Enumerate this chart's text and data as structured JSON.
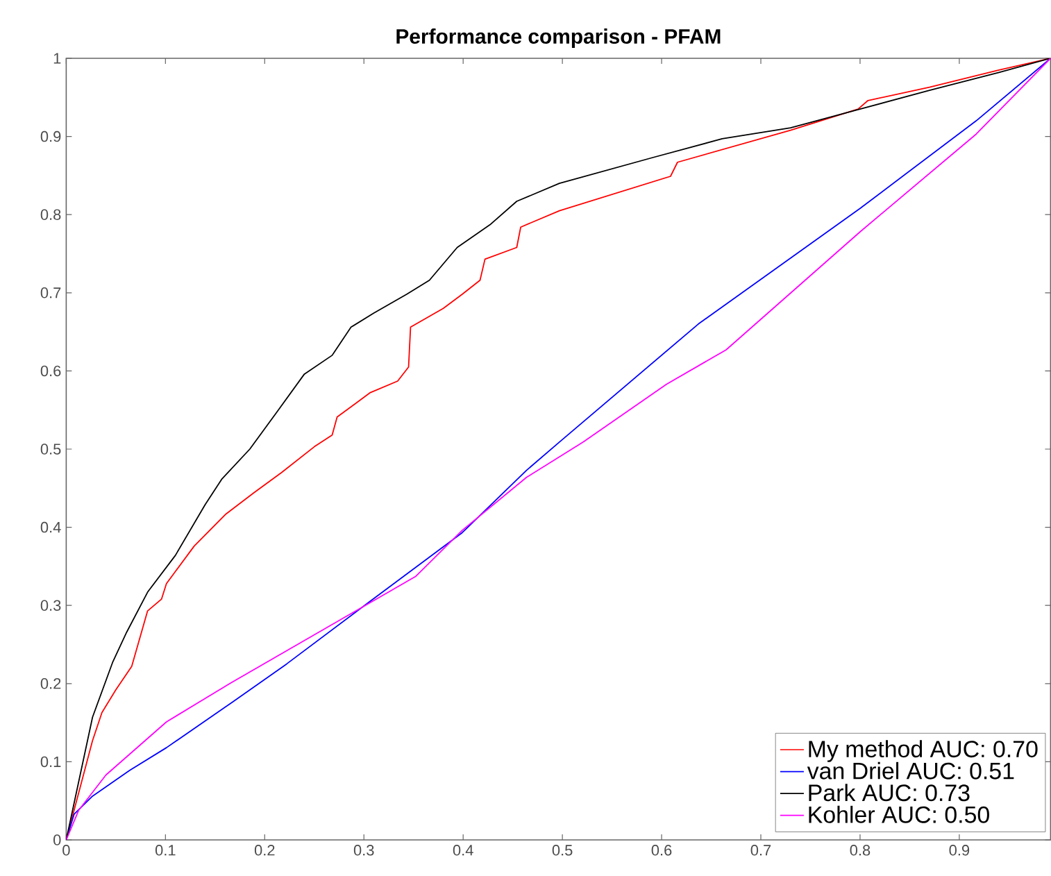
{
  "chart_data": {
    "type": "line",
    "title": "Performance comparison - PFAM",
    "xlim": [
      0,
      0.992
    ],
    "ylim": [
      0,
      1
    ],
    "xticks": [
      0,
      0.1,
      0.2,
      0.3,
      0.4,
      0.5,
      0.6,
      0.7,
      0.8,
      0.9
    ],
    "yticks": [
      0,
      0.1,
      0.2,
      0.3,
      0.4,
      0.5,
      0.6,
      0.7,
      0.8,
      0.9,
      1
    ],
    "legend": "bottom right",
    "grid": false,
    "marker": "none",
    "line_style": "solid",
    "series": [
      {
        "name": "My method AUC: 0.70",
        "color": "#ff0000",
        "x": [
          0,
          0.0265,
          0.036,
          0.05,
          0.066,
          0.082,
          0.096,
          0.101,
          0.129,
          0.161,
          0.189,
          0.217,
          0.25,
          0.268,
          0.273,
          0.306,
          0.334,
          0.345,
          0.347,
          0.38,
          0.399,
          0.417,
          0.422,
          0.454,
          0.458,
          0.497,
          0.609,
          0.616,
          0.73,
          0.798,
          0.808,
          0.87,
          0.94,
          0.992
        ],
        "values": [
          0,
          0.127,
          0.163,
          0.192,
          0.222,
          0.293,
          0.308,
          0.328,
          0.376,
          0.417,
          0.444,
          0.47,
          0.503,
          0.518,
          0.541,
          0.572,
          0.587,
          0.605,
          0.656,
          0.68,
          0.698,
          0.716,
          0.743,
          0.758,
          0.784,
          0.805,
          0.849,
          0.867,
          0.908,
          0.935,
          0.946,
          0.963,
          0.985,
          1
        ]
      },
      {
        "name": "van Driel AUC: 0.51",
        "color": "#0000ff",
        "x": [
          0,
          0.008,
          0.0265,
          0.064,
          0.101,
          0.166,
          0.222,
          0.306,
          0.399,
          0.464,
          0.497,
          0.637,
          0.8,
          0.917,
          0.992
        ],
        "values": [
          0,
          0.033,
          0.056,
          0.089,
          0.118,
          0.175,
          0.225,
          0.305,
          0.393,
          0.473,
          0.509,
          0.66,
          0.808,
          0.92,
          1
        ]
      },
      {
        "name": "Park AUC: 0.73",
        "color": "#000000",
        "x": [
          0,
          0.0265,
          0.047,
          0.061,
          0.082,
          0.11,
          0.14,
          0.157,
          0.185,
          0.2126,
          0.24,
          0.268,
          0.287,
          0.31,
          0.343,
          0.366,
          0.394,
          0.427,
          0.454,
          0.497,
          0.591,
          0.661,
          0.73,
          0.8,
          0.87,
          0.94,
          0.992
        ],
        "values": [
          0,
          0.157,
          0.228,
          0.266,
          0.317,
          0.364,
          0.429,
          0.462,
          0.5,
          0.548,
          0.596,
          0.62,
          0.656,
          0.674,
          0.698,
          0.716,
          0.758,
          0.787,
          0.817,
          0.84,
          0.873,
          0.897,
          0.911,
          0.935,
          0.959,
          0.982,
          1
        ]
      },
      {
        "name": "Kohler AUC: 0.50",
        "color": "#ff00ff",
        "x": [
          0,
          0.0126,
          0.04,
          0.101,
          0.166,
          0.259,
          0.352,
          0.399,
          0.464,
          0.521,
          0.605,
          0.665,
          0.8,
          0.917,
          0.992
        ],
        "values": [
          0,
          0.038,
          0.083,
          0.151,
          0.201,
          0.269,
          0.337,
          0.396,
          0.464,
          0.509,
          0.583,
          0.627,
          0.778,
          0.903,
          1
        ]
      }
    ]
  }
}
